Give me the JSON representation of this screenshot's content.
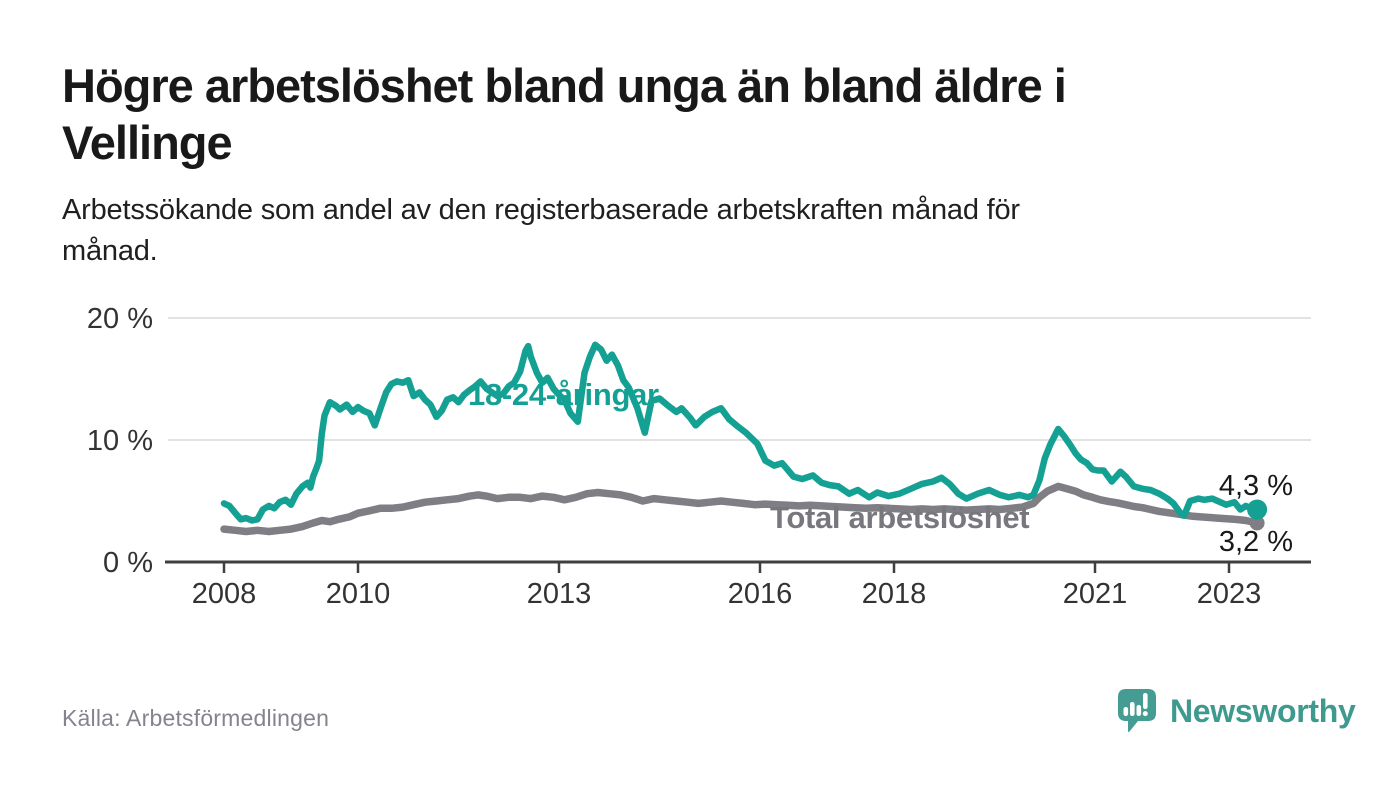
{
  "header": {
    "title_lines": [
      "Högre arbetslöshet bland unga än bland äldre i",
      "Vellinge"
    ],
    "subtitle_lines": [
      "Arbetssökande som andel av den registerbaserade arbetskraften månad för",
      "månad."
    ]
  },
  "chart_data": {
    "type": "line",
    "unit": "%",
    "ylim": [
      0,
      20
    ],
    "x_range": [
      2008,
      2023.42
    ],
    "grid": "horizontal-only",
    "legend_position": "inline-labels",
    "y_ticks": [
      {
        "value": 20,
        "label": "20 %"
      },
      {
        "value": 10,
        "label": "10 %"
      },
      {
        "value": 0,
        "label": "0 %"
      }
    ],
    "x_ticks": [
      {
        "value": 2008,
        "label": "2008"
      },
      {
        "value": 2010,
        "label": "2010"
      },
      {
        "value": 2013,
        "label": "2013"
      },
      {
        "value": 2016,
        "label": "2016"
      },
      {
        "value": 2018,
        "label": "2018"
      },
      {
        "value": 2021,
        "label": "2021"
      },
      {
        "value": 2023,
        "label": "2023"
      }
    ],
    "series": [
      {
        "name": "18-24-åringar",
        "color": "#14a193",
        "end_label": "4,3 %",
        "end_value": 4.3,
        "points": [
          [
            2008.0,
            4.8
          ],
          [
            2008.08,
            4.6
          ],
          [
            2008.17,
            4.0
          ],
          [
            2008.25,
            3.5
          ],
          [
            2008.33,
            3.6
          ],
          [
            2008.42,
            3.4
          ],
          [
            2008.5,
            3.5
          ],
          [
            2008.58,
            4.3
          ],
          [
            2008.67,
            4.6
          ],
          [
            2008.75,
            4.4
          ],
          [
            2008.83,
            4.9
          ],
          [
            2008.92,
            5.1
          ],
          [
            2009.0,
            4.7
          ],
          [
            2009.08,
            5.6
          ],
          [
            2009.17,
            6.2
          ],
          [
            2009.25,
            6.5
          ],
          [
            2009.29,
            6.1
          ],
          [
            2009.33,
            7.0
          ],
          [
            2009.38,
            7.7
          ],
          [
            2009.42,
            8.3
          ],
          [
            2009.46,
            10.5
          ],
          [
            2009.5,
            12.0
          ],
          [
            2009.58,
            13.1
          ],
          [
            2009.67,
            12.8
          ],
          [
            2009.73,
            12.5
          ],
          [
            2009.83,
            12.9
          ],
          [
            2009.92,
            12.3
          ],
          [
            2010.0,
            12.7
          ],
          [
            2010.08,
            12.4
          ],
          [
            2010.17,
            12.2
          ],
          [
            2010.25,
            11.2
          ],
          [
            2010.33,
            12.5
          ],
          [
            2010.42,
            13.9
          ],
          [
            2010.5,
            14.6
          ],
          [
            2010.58,
            14.8
          ],
          [
            2010.67,
            14.7
          ],
          [
            2010.75,
            14.9
          ],
          [
            2010.83,
            13.6
          ],
          [
            2010.92,
            13.9
          ],
          [
            2011.0,
            13.3
          ],
          [
            2011.08,
            12.9
          ],
          [
            2011.17,
            11.9
          ],
          [
            2011.25,
            12.4
          ],
          [
            2011.33,
            13.3
          ],
          [
            2011.42,
            13.5
          ],
          [
            2011.5,
            13.1
          ],
          [
            2011.58,
            13.7
          ],
          [
            2011.67,
            14.1
          ],
          [
            2011.75,
            14.4
          ],
          [
            2011.83,
            14.8
          ],
          [
            2011.92,
            14.2
          ],
          [
            2012.0,
            13.9
          ],
          [
            2012.08,
            13.6
          ],
          [
            2012.17,
            13.8
          ],
          [
            2012.25,
            14.4
          ],
          [
            2012.33,
            14.7
          ],
          [
            2012.42,
            15.6
          ],
          [
            2012.5,
            17.3
          ],
          [
            2012.54,
            17.7
          ],
          [
            2012.58,
            16.8
          ],
          [
            2012.67,
            15.5
          ],
          [
            2012.75,
            14.7
          ],
          [
            2012.83,
            15.1
          ],
          [
            2012.92,
            14.2
          ],
          [
            2013.0,
            13.7
          ],
          [
            2013.08,
            13.3
          ],
          [
            2013.17,
            12.2
          ],
          [
            2013.28,
            11.5
          ],
          [
            2013.38,
            15.5
          ],
          [
            2013.46,
            16.8
          ],
          [
            2013.54,
            17.8
          ],
          [
            2013.63,
            17.4
          ],
          [
            2013.71,
            16.5
          ],
          [
            2013.79,
            17.0
          ],
          [
            2013.88,
            16.1
          ],
          [
            2013.96,
            14.9
          ],
          [
            2014.04,
            14.3
          ],
          [
            2014.17,
            12.6
          ],
          [
            2014.28,
            10.6
          ],
          [
            2014.38,
            13.2
          ],
          [
            2014.5,
            13.4
          ],
          [
            2014.63,
            12.8
          ],
          [
            2014.75,
            12.3
          ],
          [
            2014.83,
            12.6
          ],
          [
            2014.96,
            11.8
          ],
          [
            2015.04,
            11.2
          ],
          [
            2015.17,
            11.9
          ],
          [
            2015.29,
            12.3
          ],
          [
            2015.42,
            12.6
          ],
          [
            2015.54,
            11.7
          ],
          [
            2015.67,
            11.1
          ],
          [
            2015.79,
            10.6
          ],
          [
            2015.96,
            9.7
          ],
          [
            2016.08,
            8.3
          ],
          [
            2016.21,
            7.9
          ],
          [
            2016.33,
            8.1
          ],
          [
            2016.5,
            7.0
          ],
          [
            2016.63,
            6.8
          ],
          [
            2016.79,
            7.1
          ],
          [
            2016.92,
            6.5
          ],
          [
            2017.04,
            6.3
          ],
          [
            2017.17,
            6.2
          ],
          [
            2017.33,
            5.6
          ],
          [
            2017.46,
            5.9
          ],
          [
            2017.63,
            5.3
          ],
          [
            2017.75,
            5.7
          ],
          [
            2017.92,
            5.4
          ],
          [
            2018.08,
            5.6
          ],
          [
            2018.25,
            6.0
          ],
          [
            2018.42,
            6.4
          ],
          [
            2018.58,
            6.6
          ],
          [
            2018.71,
            6.9
          ],
          [
            2018.83,
            6.4
          ],
          [
            2018.96,
            5.6
          ],
          [
            2019.08,
            5.2
          ],
          [
            2019.25,
            5.6
          ],
          [
            2019.42,
            5.9
          ],
          [
            2019.58,
            5.5
          ],
          [
            2019.71,
            5.3
          ],
          [
            2019.87,
            5.5
          ],
          [
            2020.0,
            5.3
          ],
          [
            2020.08,
            5.5
          ],
          [
            2020.17,
            6.7
          ],
          [
            2020.25,
            8.5
          ],
          [
            2020.33,
            9.6
          ],
          [
            2020.45,
            10.9
          ],
          [
            2020.54,
            10.3
          ],
          [
            2020.63,
            9.6
          ],
          [
            2020.71,
            8.9
          ],
          [
            2020.79,
            8.4
          ],
          [
            2020.88,
            8.1
          ],
          [
            2020.96,
            7.6
          ],
          [
            2021.04,
            7.5
          ],
          [
            2021.13,
            7.5
          ],
          [
            2021.25,
            6.6
          ],
          [
            2021.38,
            7.4
          ],
          [
            2021.46,
            7.0
          ],
          [
            2021.58,
            6.2
          ],
          [
            2021.71,
            6.0
          ],
          [
            2021.83,
            5.9
          ],
          [
            2021.96,
            5.6
          ],
          [
            2022.08,
            5.2
          ],
          [
            2022.17,
            4.8
          ],
          [
            2022.29,
            3.9
          ],
          [
            2022.33,
            3.8
          ],
          [
            2022.42,
            5.0
          ],
          [
            2022.54,
            5.2
          ],
          [
            2022.63,
            5.1
          ],
          [
            2022.75,
            5.2
          ],
          [
            2022.83,
            5.0
          ],
          [
            2022.96,
            4.7
          ],
          [
            2023.08,
            4.9
          ],
          [
            2023.17,
            4.3
          ],
          [
            2023.25,
            4.6
          ],
          [
            2023.33,
            4.4
          ],
          [
            2023.42,
            4.3
          ]
        ]
      },
      {
        "name": "Total arbetslöshet",
        "color": "#7e7e84",
        "end_label": "3,2 %",
        "end_value": 3.2,
        "points": [
          [
            2008.0,
            2.7
          ],
          [
            2008.17,
            2.6
          ],
          [
            2008.33,
            2.5
          ],
          [
            2008.5,
            2.6
          ],
          [
            2008.67,
            2.5
          ],
          [
            2008.83,
            2.6
          ],
          [
            2009.0,
            2.7
          ],
          [
            2009.17,
            2.9
          ],
          [
            2009.33,
            3.2
          ],
          [
            2009.46,
            3.4
          ],
          [
            2009.58,
            3.3
          ],
          [
            2009.71,
            3.5
          ],
          [
            2009.87,
            3.7
          ],
          [
            2010.0,
            4.0
          ],
          [
            2010.17,
            4.2
          ],
          [
            2010.33,
            4.4
          ],
          [
            2010.5,
            4.4
          ],
          [
            2010.67,
            4.5
          ],
          [
            2010.83,
            4.7
          ],
          [
            2011.0,
            4.9
          ],
          [
            2011.17,
            5.0
          ],
          [
            2011.33,
            5.1
          ],
          [
            2011.5,
            5.2
          ],
          [
            2011.67,
            5.4
          ],
          [
            2011.79,
            5.5
          ],
          [
            2011.92,
            5.4
          ],
          [
            2012.08,
            5.2
          ],
          [
            2012.25,
            5.3
          ],
          [
            2012.42,
            5.3
          ],
          [
            2012.58,
            5.2
          ],
          [
            2012.75,
            5.4
          ],
          [
            2012.92,
            5.3
          ],
          [
            2013.08,
            5.1
          ],
          [
            2013.25,
            5.3
          ],
          [
            2013.42,
            5.6
          ],
          [
            2013.58,
            5.7
          ],
          [
            2013.75,
            5.6
          ],
          [
            2013.92,
            5.5
          ],
          [
            2014.08,
            5.3
          ],
          [
            2014.25,
            5.0
          ],
          [
            2014.42,
            5.2
          ],
          [
            2014.58,
            5.1
          ],
          [
            2014.75,
            5.0
          ],
          [
            2014.92,
            4.9
          ],
          [
            2015.08,
            4.8
          ],
          [
            2015.25,
            4.9
          ],
          [
            2015.42,
            5.0
          ],
          [
            2015.58,
            4.9
          ],
          [
            2015.75,
            4.8
          ],
          [
            2015.92,
            4.7
          ],
          [
            2016.08,
            4.75
          ],
          [
            2016.25,
            4.7
          ],
          [
            2016.42,
            4.65
          ],
          [
            2016.58,
            4.6
          ],
          [
            2016.75,
            4.65
          ],
          [
            2016.92,
            4.6
          ],
          [
            2017.08,
            4.55
          ],
          [
            2017.25,
            4.5
          ],
          [
            2017.42,
            4.45
          ],
          [
            2017.58,
            4.4
          ],
          [
            2017.75,
            4.45
          ],
          [
            2017.92,
            4.4
          ],
          [
            2018.08,
            4.35
          ],
          [
            2018.25,
            4.3
          ],
          [
            2018.42,
            4.35
          ],
          [
            2018.58,
            4.3
          ],
          [
            2018.75,
            4.35
          ],
          [
            2018.92,
            4.3
          ],
          [
            2019.08,
            4.25
          ],
          [
            2019.25,
            4.3
          ],
          [
            2019.42,
            4.35
          ],
          [
            2019.58,
            4.3
          ],
          [
            2019.75,
            4.4
          ],
          [
            2019.92,
            4.5
          ],
          [
            2020.08,
            4.8
          ],
          [
            2020.17,
            5.3
          ],
          [
            2020.29,
            5.8
          ],
          [
            2020.45,
            6.2
          ],
          [
            2020.58,
            6.0
          ],
          [
            2020.71,
            5.8
          ],
          [
            2020.83,
            5.5
          ],
          [
            2020.96,
            5.3
          ],
          [
            2021.08,
            5.1
          ],
          [
            2021.21,
            4.95
          ],
          [
            2021.33,
            4.85
          ],
          [
            2021.46,
            4.7
          ],
          [
            2021.58,
            4.55
          ],
          [
            2021.71,
            4.45
          ],
          [
            2021.83,
            4.3
          ],
          [
            2021.96,
            4.15
          ],
          [
            2022.08,
            4.05
          ],
          [
            2022.21,
            3.95
          ],
          [
            2022.33,
            3.85
          ],
          [
            2022.46,
            3.75
          ],
          [
            2022.58,
            3.7
          ],
          [
            2022.71,
            3.65
          ],
          [
            2022.83,
            3.6
          ],
          [
            2022.96,
            3.55
          ],
          [
            2023.08,
            3.5
          ],
          [
            2023.17,
            3.45
          ],
          [
            2023.25,
            3.4
          ],
          [
            2023.42,
            3.2
          ]
        ]
      }
    ]
  },
  "footer": {
    "source": "Källa: Arbetsförmedlingen",
    "logo_text": "Newsworthy"
  },
  "colors": {
    "accent_teal": "#14a193",
    "line_gray": "#7e7e84",
    "logo_teal": "#3e998f",
    "grid": "#d9d9d9",
    "axis": "#3f3f3f",
    "text_dark": "#191919",
    "text_muted": "#84848c"
  }
}
